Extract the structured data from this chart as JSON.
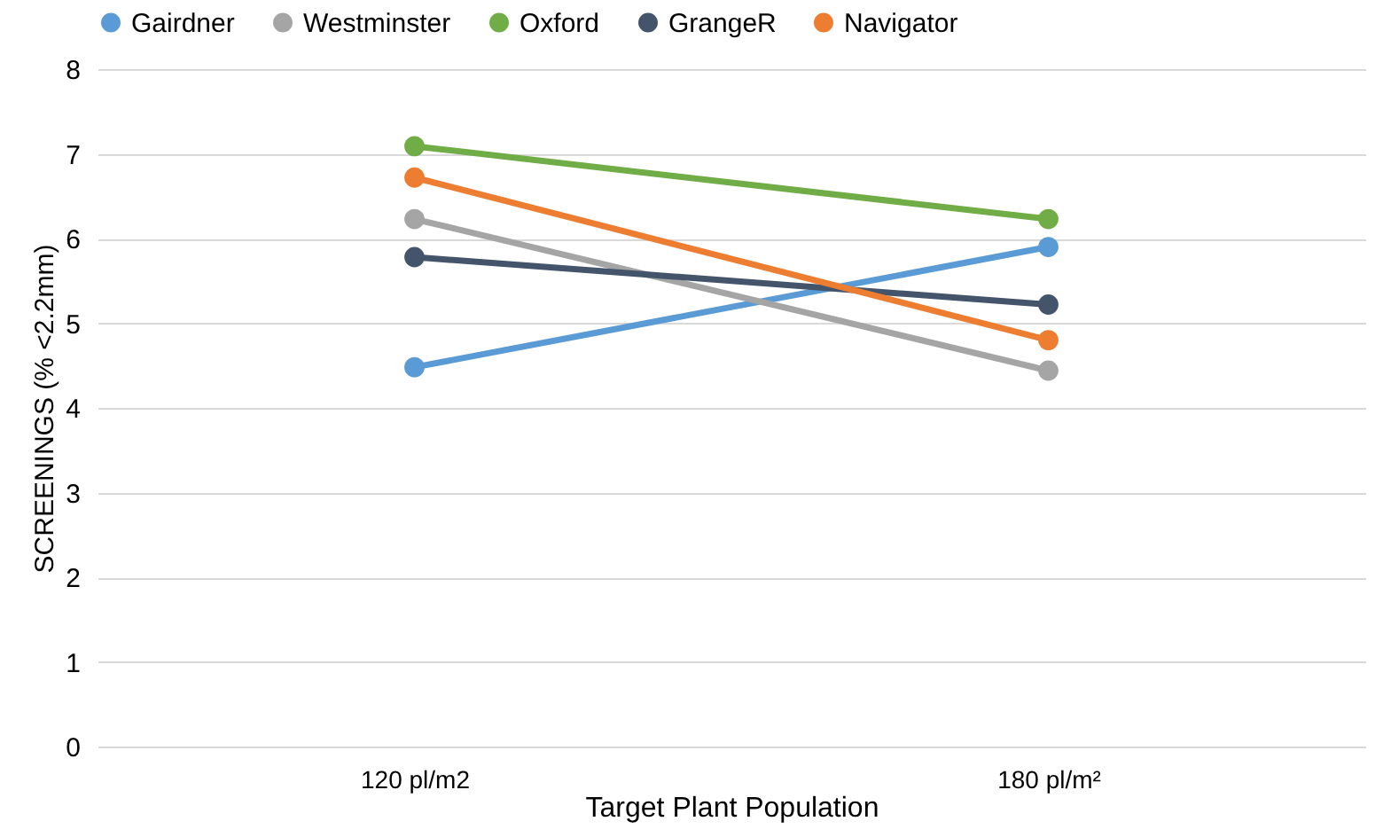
{
  "chart_data": {
    "type": "line",
    "xlabel": "Target Plant Population",
    "ylabel": "SCREENINGS (% <2.2mm)",
    "categories": [
      "120 pl/m2",
      "180 pl/m²"
    ],
    "series": [
      {
        "name": "Gairdner",
        "color": "#5b9bd5",
        "values": [
          4.48,
          5.9
        ]
      },
      {
        "name": "Westminster",
        "color": "#a5a5a5",
        "values": [
          6.23,
          4.44
        ]
      },
      {
        "name": "Oxford",
        "color": "#70ad47",
        "values": [
          7.09,
          6.23
        ]
      },
      {
        "name": "GrangeR",
        "color": "#44546a",
        "values": [
          5.78,
          5.22
        ]
      },
      {
        "name": "Navigator",
        "color": "#ed7d31",
        "values": [
          6.72,
          4.8
        ]
      }
    ],
    "ylim": [
      0,
      8
    ],
    "yticks": [
      0,
      1,
      2,
      3,
      4,
      5,
      6,
      7,
      8
    ],
    "grid": "y",
    "legend": "top",
    "marker": "circle",
    "line_style": "solid"
  }
}
